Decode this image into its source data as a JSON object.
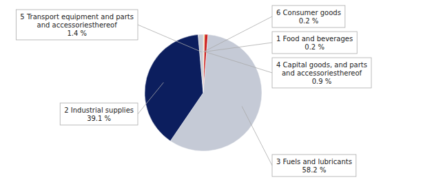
{
  "chart_data": {
    "type": "pie",
    "categories": [
      "6 Consumer goods",
      "1 Food and beverages",
      "4 Capital goods, and parts\nand accessoriesthereof",
      "3 Fuels and lubricants",
      "2 Industrial supplies",
      "5 Transport equipment and parts\nand accessoriesthereof"
    ],
    "values": [
      0.2,
      0.2,
      0.9,
      58.2,
      39.1,
      1.4
    ],
    "value_labels": [
      "0.2 %",
      "0.2 %",
      "0.9 %",
      "58.2 %",
      "39.1 %",
      "1.4 %"
    ],
    "colors": [
      "#c8ccd4",
      "#f5b800",
      "#cc2222",
      "#c5cad6",
      "#0c1e5e",
      "#c8ccd4"
    ],
    "data_labels": true
  }
}
